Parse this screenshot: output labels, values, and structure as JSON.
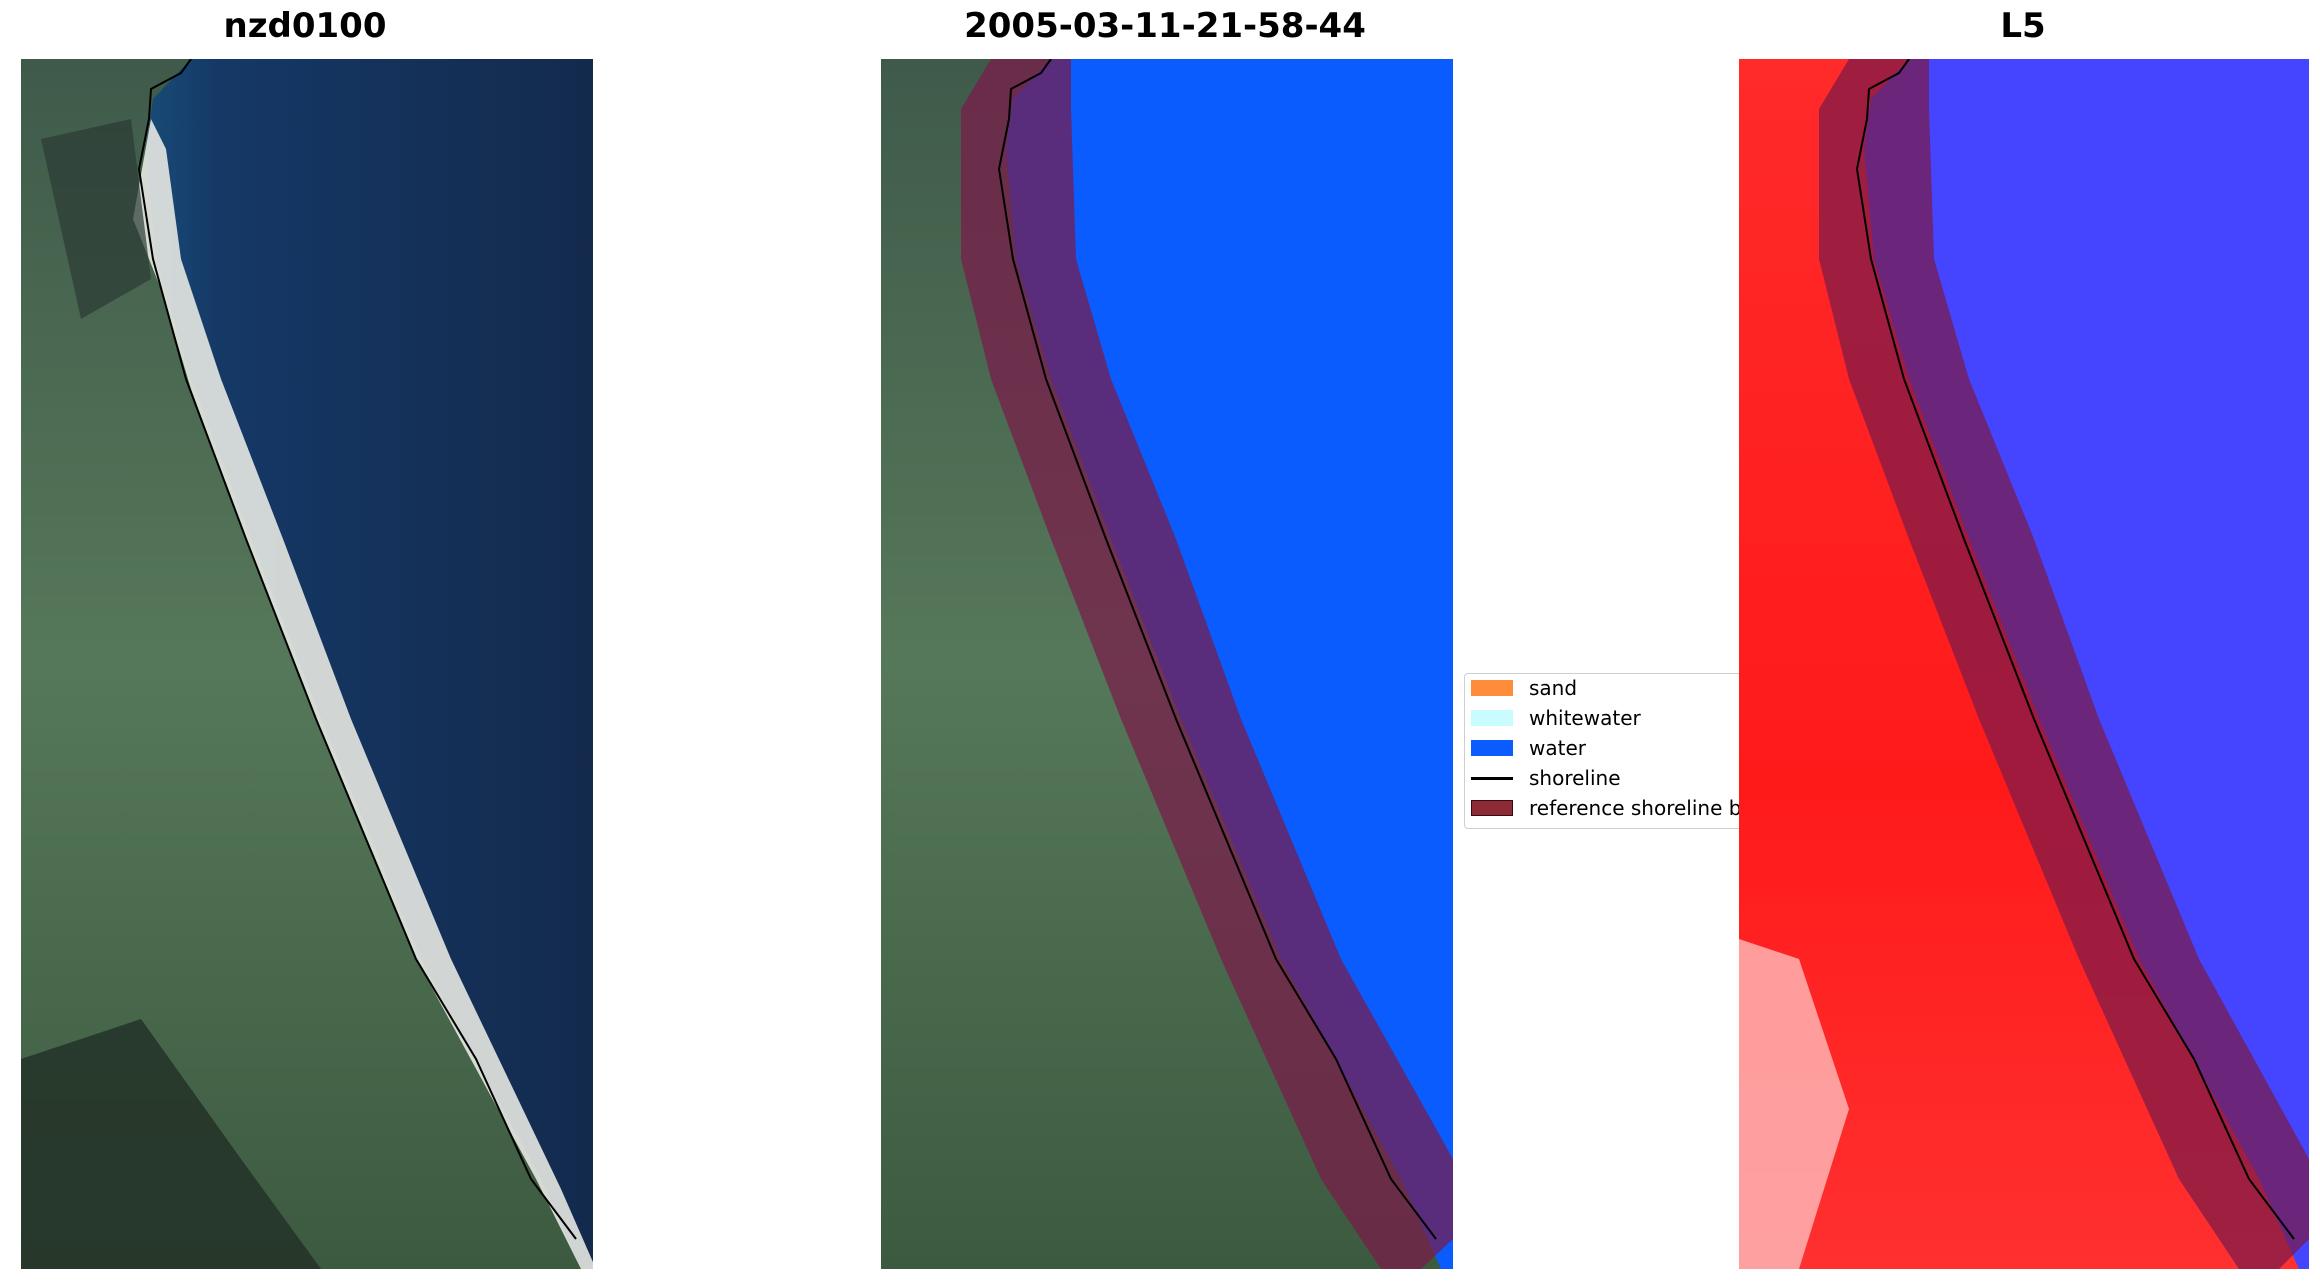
{
  "panels": [
    {
      "title": "nzd0100"
    },
    {
      "title": "2005-03-11-21-58-44"
    },
    {
      "title": "L5"
    }
  ],
  "legend": {
    "items": [
      {
        "label": "sand",
        "color": "#ff8c3a",
        "kind": "patch"
      },
      {
        "label": "whitewater",
        "color": "#c8fcff",
        "kind": "patch"
      },
      {
        "label": "water",
        "color": "#0a5cff",
        "kind": "patch"
      },
      {
        "label": "shoreline",
        "color": "#000000",
        "kind": "line"
      },
      {
        "label": "reference shoreline b",
        "color": "#8c2a35",
        "kind": "patch"
      }
    ]
  },
  "colors": {
    "ocean_deep": "#142a4c",
    "ocean_shallow": "#1d5a85",
    "land_green": "#4e6e52",
    "land_dark": "#26382c",
    "beach": "#e4e6e0",
    "water_class": "#0a5cff",
    "buffer_overlay": "#7a1a4a",
    "index_land": "#ff1818",
    "index_water": "#3a3aff"
  }
}
